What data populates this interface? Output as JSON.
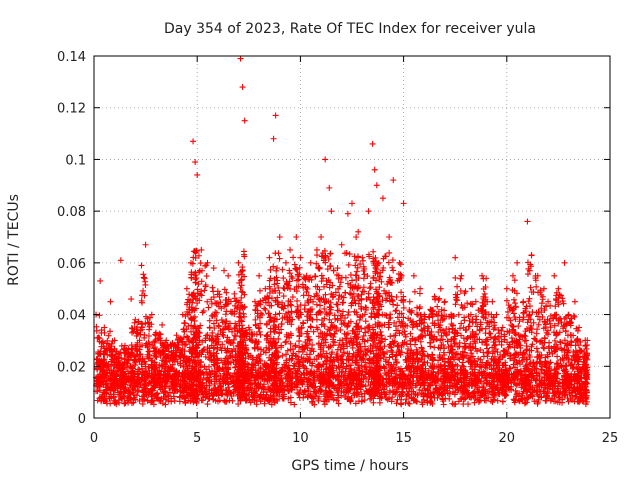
{
  "chart_data": {
    "type": "scatter",
    "title": "Day 354 of 2023, Rate Of TEC Index for receiver yula",
    "xlabel": "GPS time / hours",
    "ylabel": "ROTI / TECUs",
    "xlim": [
      0,
      25
    ],
    "ylim": [
      0,
      0.14
    ],
    "xticks": [
      0,
      5,
      10,
      15,
      20,
      25
    ],
    "xtick_labels": [
      "0",
      "5",
      "10",
      "15",
      "20",
      "25"
    ],
    "yticks": [
      0,
      0.02,
      0.04,
      0.06,
      0.08,
      0.1,
      0.12,
      0.14
    ],
    "ytick_labels": [
      "0",
      "0.02",
      "0.04",
      "0.06",
      "0.08",
      "0.1",
      "0.12",
      "0.14"
    ],
    "grid": true,
    "marker": "plus",
    "color": "#ff0000",
    "series": [
      {
        "name": "ROTI",
        "x": [
          0.1,
          0.3,
          0.5,
          0.8,
          1.0,
          1.3,
          1.5,
          1.8,
          2.0,
          2.3,
          2.5,
          2.8,
          3.0,
          3.3,
          3.5,
          3.8,
          4.0,
          4.3,
          4.5,
          4.7,
          4.8,
          4.9,
          5.0,
          5.2,
          5.5,
          5.8,
          6.0,
          6.3,
          6.5,
          6.8,
          7.0,
          7.1,
          7.2,
          7.3,
          7.5,
          7.8,
          8.0,
          8.3,
          8.5,
          8.7,
          8.8,
          9.0,
          9.3,
          9.5,
          9.8,
          10.0,
          10.3,
          10.5,
          10.8,
          11.0,
          11.2,
          11.4,
          11.5,
          11.8,
          12.0,
          12.3,
          12.5,
          12.7,
          12.8,
          13.0,
          13.3,
          13.5,
          13.6,
          13.7,
          13.8,
          14.0,
          14.3,
          14.5,
          14.8,
          15.0,
          15.3,
          15.5,
          15.8,
          16.0,
          16.3,
          16.5,
          16.8,
          17.0,
          17.3,
          17.5,
          17.8,
          18.0,
          18.3,
          18.5,
          18.8,
          19.0,
          19.3,
          19.5,
          19.8,
          20.0,
          20.3,
          20.5,
          20.8,
          21.0,
          21.2,
          21.5,
          21.8,
          22.0,
          22.3,
          22.5,
          22.8,
          23.0,
          23.3,
          23.5,
          23.8,
          23.9
        ],
        "y": [
          0.04,
          0.053,
          0.035,
          0.045,
          0.03,
          0.061,
          0.028,
          0.046,
          0.038,
          0.059,
          0.067,
          0.04,
          0.033,
          0.036,
          0.03,
          0.029,
          0.032,
          0.04,
          0.05,
          0.06,
          0.107,
          0.099,
          0.094,
          0.065,
          0.06,
          0.058,
          0.049,
          0.057,
          0.055,
          0.048,
          0.06,
          0.139,
          0.128,
          0.115,
          0.035,
          0.045,
          0.055,
          0.05,
          0.062,
          0.108,
          0.117,
          0.07,
          0.06,
          0.065,
          0.07,
          0.062,
          0.055,
          0.06,
          0.065,
          0.07,
          0.1,
          0.089,
          0.08,
          0.058,
          0.067,
          0.079,
          0.083,
          0.07,
          0.072,
          0.062,
          0.08,
          0.106,
          0.096,
          0.09,
          0.06,
          0.085,
          0.07,
          0.092,
          0.06,
          0.083,
          0.045,
          0.055,
          0.05,
          0.04,
          0.042,
          0.047,
          0.05,
          0.045,
          0.04,
          0.062,
          0.055,
          0.049,
          0.05,
          0.045,
          0.055,
          0.054,
          0.045,
          0.04,
          0.035,
          0.05,
          0.055,
          0.06,
          0.045,
          0.076,
          0.063,
          0.055,
          0.05,
          0.045,
          0.055,
          0.05,
          0.06,
          0.04,
          0.045,
          0.035,
          0.03,
          0.03
        ]
      }
    ]
  }
}
